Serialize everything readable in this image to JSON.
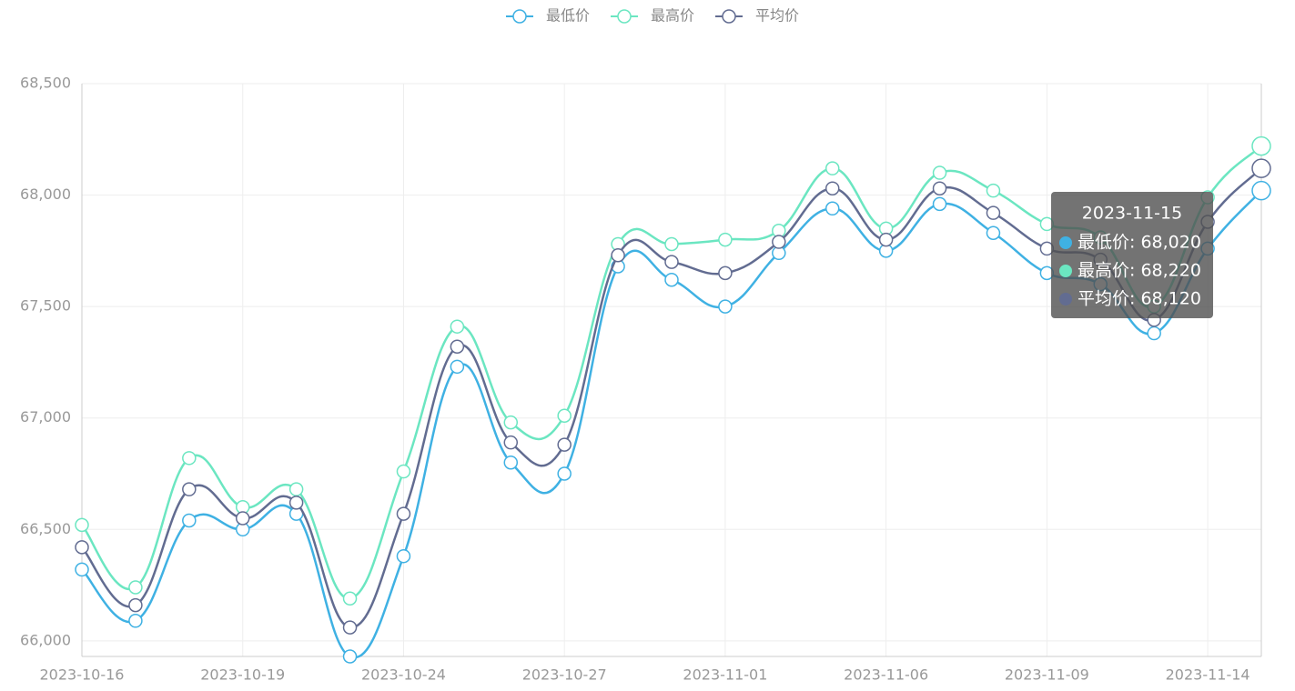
{
  "chart_data": {
    "type": "line",
    "categories": [
      "2023-10-16",
      null,
      null,
      "2023-10-19",
      null,
      null,
      "2023-10-24",
      null,
      null,
      "2023-10-27",
      null,
      null,
      "2023-11-01",
      null,
      null,
      "2023-11-06",
      null,
      null,
      "2023-11-09",
      null,
      null,
      "2023-11-14",
      null
    ],
    "series": [
      {
        "name": "最低价",
        "color": "#3fb1e3",
        "values": [
          66320,
          66090,
          66540,
          66500,
          66570,
          65930,
          66380,
          67230,
          66800,
          66750,
          67680,
          67620,
          67500,
          67740,
          67940,
          67750,
          67960,
          67830,
          67650,
          67600,
          67380,
          67760,
          68020
        ]
      },
      {
        "name": "最高价",
        "color": "#6be6c1",
        "values": [
          66520,
          66240,
          66820,
          66600,
          66680,
          66190,
          66760,
          67410,
          66980,
          67010,
          67780,
          67780,
          67800,
          67840,
          68120,
          67850,
          68100,
          68020,
          67870,
          67810,
          67500,
          67990,
          68220
        ]
      },
      {
        "name": "平均价",
        "color": "#626c91",
        "values": [
          66420,
          66160,
          66680,
          66550,
          66620,
          66060,
          66570,
          67320,
          66890,
          66880,
          67730,
          67700,
          67650,
          67790,
          68030,
          67800,
          68030,
          67920,
          67760,
          67710,
          67440,
          67880,
          68120
        ]
      }
    ],
    "ylim": [
      65930,
      68500
    ],
    "yticks": [
      {
        "value": 66000,
        "label": "66,000"
      },
      {
        "value": 66500,
        "label": "66,500"
      },
      {
        "value": 67000,
        "label": "67,000"
      },
      {
        "value": 67500,
        "label": "67,500"
      },
      {
        "value": 68000,
        "label": "68,000"
      },
      {
        "value": 68500,
        "label": "68,500"
      }
    ],
    "grid": true,
    "smooth": true,
    "tooltip": {
      "title": "2023-11-15",
      "items": [
        "最低价: 68,020",
        "最高价: 68,220",
        "平均价: 68,120"
      ]
    }
  }
}
